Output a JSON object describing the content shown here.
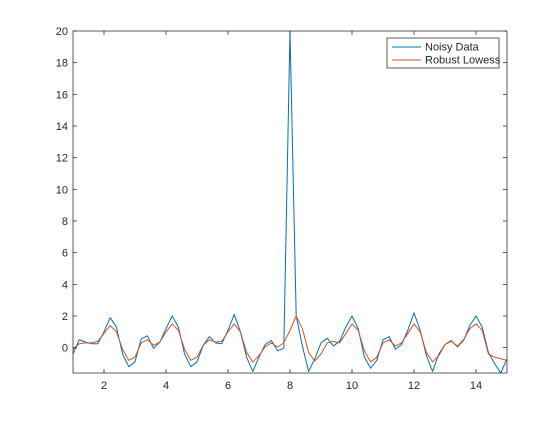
{
  "chart_data": {
    "type": "line",
    "xlim": [
      1,
      15
    ],
    "ylim": [
      -1.6,
      20
    ],
    "x_ticks": [
      2,
      4,
      6,
      8,
      10,
      12,
      14
    ],
    "y_ticks": [
      0,
      2,
      4,
      6,
      8,
      10,
      12,
      14,
      16,
      18,
      20
    ],
    "grid": false,
    "box": true,
    "legend_position": "top-right",
    "series": [
      {
        "name": "Noisy Data",
        "color": "#0072BD",
        "x": [
          1.0,
          1.2,
          1.4,
          1.6,
          1.8,
          2.0,
          2.2,
          2.4,
          2.6,
          2.8,
          3.0,
          3.2,
          3.4,
          3.6,
          3.8,
          4.0,
          4.2,
          4.4,
          4.6,
          4.8,
          5.0,
          5.2,
          5.4,
          5.6,
          5.8,
          6.0,
          6.2,
          6.4,
          6.6,
          6.8,
          7.0,
          7.2,
          7.4,
          7.6,
          7.8,
          8.0,
          8.2,
          8.4,
          8.6,
          8.8,
          9.0,
          9.2,
          9.4,
          9.6,
          9.8,
          10.0,
          10.2,
          10.4,
          10.6,
          10.8,
          11.0,
          11.2,
          11.4,
          11.6,
          11.8,
          12.0,
          12.2,
          12.4,
          12.6,
          12.8,
          13.0,
          13.2,
          13.4,
          13.6,
          13.8,
          14.0,
          14.2,
          14.4,
          14.6,
          14.8,
          15.0
        ],
        "y": [
          -0.4,
          0.5,
          0.35,
          0.25,
          0.25,
          1.0,
          1.9,
          1.3,
          -0.4,
          -1.2,
          -0.9,
          0.55,
          0.75,
          -0.05,
          0.35,
          1.2,
          2.0,
          1.3,
          -0.4,
          -1.2,
          -0.9,
          0.15,
          0.7,
          0.3,
          0.25,
          1.1,
          2.1,
          1.0,
          -0.6,
          -1.5,
          -0.6,
          0.2,
          0.45,
          -0.2,
          -0.05,
          20.0,
          2.0,
          0.1,
          -1.5,
          -0.7,
          0.3,
          0.6,
          0.1,
          0.4,
          1.3,
          2.0,
          1.2,
          -0.6,
          -1.3,
          -0.8,
          0.5,
          0.7,
          -0.1,
          0.2,
          1.1,
          2.2,
          1.1,
          -0.5,
          -1.5,
          -0.4,
          0.2,
          0.45,
          0.05,
          0.45,
          1.4,
          2.0,
          1.3,
          -0.3,
          -1.0,
          -1.6,
          -0.7
        ]
      },
      {
        "name": "Robust Lowess",
        "color": "#D95319",
        "x": [
          1.0,
          1.2,
          1.4,
          1.6,
          1.8,
          2.0,
          2.2,
          2.4,
          2.6,
          2.8,
          3.0,
          3.2,
          3.4,
          3.6,
          3.8,
          4.0,
          4.2,
          4.4,
          4.6,
          4.8,
          5.0,
          5.2,
          5.4,
          5.6,
          5.8,
          6.0,
          6.2,
          6.4,
          6.6,
          6.8,
          7.0,
          7.2,
          7.4,
          7.6,
          7.8,
          8.0,
          8.2,
          8.4,
          8.6,
          8.8,
          9.0,
          9.2,
          9.4,
          9.6,
          9.8,
          10.0,
          10.2,
          10.4,
          10.6,
          10.8,
          11.0,
          11.2,
          11.4,
          11.6,
          11.8,
          12.0,
          12.2,
          12.4,
          12.6,
          12.8,
          13.0,
          13.2,
          13.4,
          13.6,
          13.8,
          14.0,
          14.2,
          14.4,
          14.6,
          14.8,
          15.0
        ],
        "y": [
          -0.1,
          0.25,
          0.3,
          0.3,
          0.4,
          0.9,
          1.4,
          1.0,
          -0.1,
          -0.8,
          -0.6,
          0.3,
          0.5,
          0.15,
          0.35,
          1.0,
          1.5,
          1.1,
          -0.1,
          -0.8,
          -0.6,
          0.15,
          0.5,
          0.35,
          0.4,
          1.0,
          1.5,
          1.0,
          -0.3,
          -0.9,
          -0.5,
          0.05,
          0.3,
          0.05,
          0.3,
          1.1,
          2.0,
          1.2,
          -0.3,
          -0.85,
          -0.4,
          0.3,
          0.4,
          0.3,
          0.9,
          1.5,
          1.1,
          -0.2,
          -0.9,
          -0.6,
          0.3,
          0.5,
          0.1,
          0.3,
          0.9,
          1.5,
          1.0,
          -0.3,
          -0.9,
          -0.5,
          0.2,
          0.4,
          0.1,
          0.5,
          1.2,
          1.5,
          1.1,
          -0.4,
          -0.6,
          -0.7,
          -0.8
        ]
      }
    ]
  }
}
